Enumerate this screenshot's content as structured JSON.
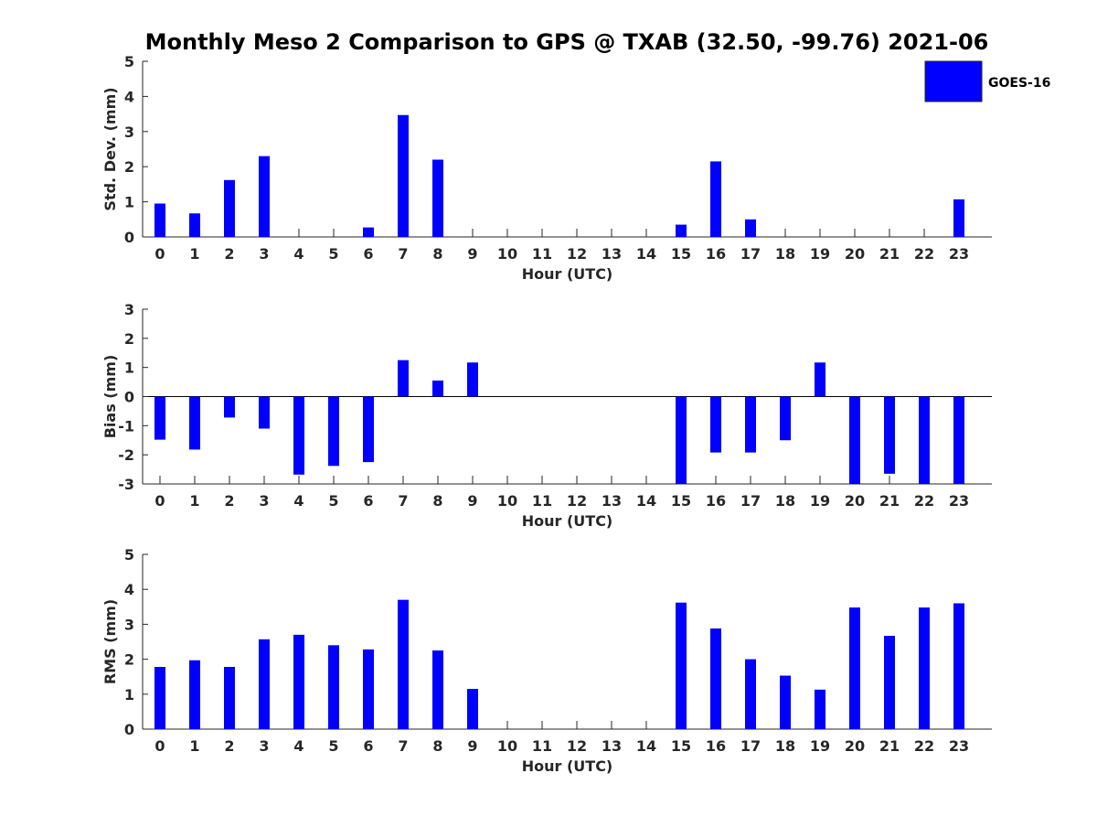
{
  "chart_data": {
    "type": "bar",
    "title": "Monthly Meso 2 Comparison to GPS @ TXAB (32.50, -99.76) 2021-06",
    "legend": {
      "entries": [
        "GOES-16"
      ],
      "placement": "top-right"
    },
    "colors": {
      "bar": "#0000ff",
      "axis": "#262626",
      "background": "#ffffff"
    },
    "categories": [
      "0",
      "1",
      "2",
      "3",
      "4",
      "5",
      "6",
      "7",
      "8",
      "9",
      "10",
      "11",
      "12",
      "13",
      "14",
      "15",
      "16",
      "17",
      "18",
      "19",
      "20",
      "21",
      "22",
      "23"
    ],
    "panels": [
      {
        "ylabel": "Std. Dev. (mm)",
        "xlabel": "Hour (UTC)",
        "ylim": [
          0,
          5
        ],
        "yticks": [
          "0",
          "1",
          "2",
          "3",
          "4",
          "5"
        ],
        "series": [
          {
            "name": "GOES-16",
            "values": [
              0.95,
              0.67,
              1.62,
              2.3,
              null,
              null,
              0.27,
              3.47,
              2.2,
              null,
              null,
              null,
              null,
              null,
              null,
              0.35,
              2.15,
              0.5,
              null,
              null,
              null,
              null,
              null,
              1.07
            ]
          }
        ]
      },
      {
        "ylabel": "Bias (mm)",
        "xlabel": "Hour (UTC)",
        "ylim": [
          -3,
          3
        ],
        "yticks": [
          "-3",
          "-2",
          "-1",
          "0",
          "1",
          "2",
          "3"
        ],
        "series": [
          {
            "name": "GOES-16",
            "values": [
              -1.48,
              -1.82,
              -0.72,
              -1.1,
              -2.68,
              -2.38,
              -2.25,
              1.25,
              0.55,
              1.17,
              null,
              null,
              null,
              null,
              null,
              -3.0,
              -1.92,
              -1.92,
              -1.5,
              1.17,
              -3.0,
              -2.65,
              -3.0,
              -3.0
            ]
          }
        ]
      },
      {
        "ylabel": "RMS (mm)",
        "xlabel": "Hour (UTC)",
        "ylim": [
          0,
          5
        ],
        "yticks": [
          "0",
          "1",
          "2",
          "3",
          "4",
          "5"
        ],
        "series": [
          {
            "name": "GOES-16",
            "values": [
              1.78,
              1.97,
              1.78,
              2.57,
              2.7,
              2.4,
              2.28,
              3.7,
              2.25,
              1.15,
              null,
              null,
              null,
              null,
              null,
              3.62,
              2.88,
              2.0,
              1.53,
              1.13,
              3.48,
              2.67,
              3.48,
              3.6
            ]
          }
        ]
      }
    ]
  }
}
